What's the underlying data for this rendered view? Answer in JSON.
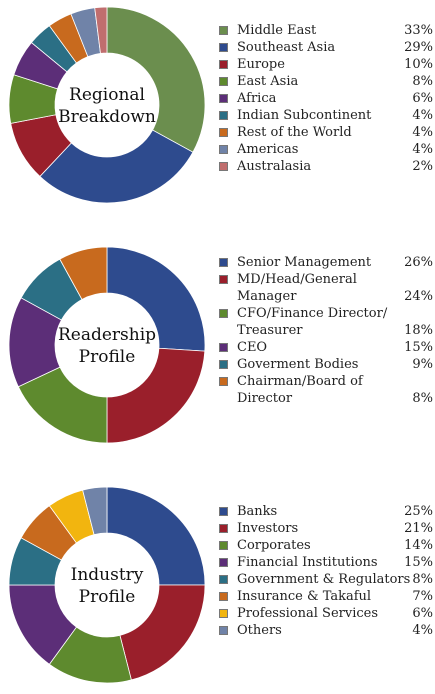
{
  "chart_data": [
    {
      "type": "pie",
      "title": "Regional Breakdown",
      "title_lines": [
        "Regional",
        "Breakdown"
      ],
      "categories": [
        "Middle East",
        "Southeast Asia",
        "Europe",
        "East Asia",
        "Africa",
        "Indian Subcontinent",
        "Rest of the World",
        "Americas",
        "Australasia"
      ],
      "values": [
        33,
        29,
        10,
        8,
        6,
        4,
        4,
        4,
        2
      ],
      "value_labels": [
        "33%",
        "29%",
        "10%",
        "8%",
        "6%",
        "4%",
        "4%",
        "4%",
        "2%"
      ],
      "colors": [
        "#6B8E4E",
        "#2E4B8E",
        "#9A1F2B",
        "#5E8A2E",
        "#5C2E78",
        "#2B6F85",
        "#C86A1E",
        "#7083A8",
        "#C06E6E"
      ],
      "legend_lines": [
        [
          "Middle East"
        ],
        [
          "Southeast Asia"
        ],
        [
          "Europe"
        ],
        [
          "East Asia"
        ],
        [
          "Africa"
        ],
        [
          "Indian Subcontinent"
        ],
        [
          "Rest of the World"
        ],
        [
          "Americas"
        ],
        [
          "Australasia"
        ]
      ]
    },
    {
      "type": "pie",
      "title": "Readership Profile",
      "title_lines": [
        "Readership",
        "Profile"
      ],
      "categories": [
        "Senior Management",
        "MD/Head/General Manager",
        "CFO/Finance Director/ Treasurer",
        "CEO",
        "Goverment Bodies",
        "Chairman/Board of Director"
      ],
      "values": [
        26,
        24,
        18,
        15,
        9,
        8
      ],
      "value_labels": [
        "26%",
        "24%",
        "18%",
        "15%",
        "9%",
        "8%"
      ],
      "colors": [
        "#2E4B8E",
        "#9A1F2B",
        "#5E8A2E",
        "#5C2E78",
        "#2B6F85",
        "#C86A1E"
      ],
      "legend_lines": [
        [
          "Senior Management"
        ],
        [
          "MD/Head/General",
          "Manager"
        ],
        [
          "CFO/Finance Director/",
          "Treasurer"
        ],
        [
          "CEO"
        ],
        [
          "Goverment Bodies"
        ],
        [
          "Chairman/Board of",
          "Director"
        ]
      ]
    },
    {
      "type": "pie",
      "title": "Industry Profile",
      "title_lines": [
        "Industry",
        "Profile"
      ],
      "categories": [
        "Banks",
        "Investors",
        "Corporates",
        "Financial Institutions",
        "Government & Regulators",
        "Insurance & Takaful",
        "Professional Services",
        "Others"
      ],
      "values": [
        25,
        21,
        14,
        15,
        8,
        7,
        6,
        4
      ],
      "value_labels": [
        "25%",
        "21%",
        "14%",
        "15%",
        "8%",
        "7%",
        "6%",
        "4%"
      ],
      "colors": [
        "#2E4B8E",
        "#9A1F2B",
        "#5E8A2E",
        "#5C2E78",
        "#2B6F85",
        "#C86A1E",
        "#F2B50F",
        "#7083A8"
      ],
      "legend_lines": [
        [
          "Banks"
        ],
        [
          "Investors"
        ],
        [
          "Corporates"
        ],
        [
          "Financial Institutions"
        ],
        [
          "Government & Regulators"
        ],
        [
          "Insurance & Takaful"
        ],
        [
          "Professional Services"
        ],
        [
          "Others"
        ]
      ]
    }
  ]
}
